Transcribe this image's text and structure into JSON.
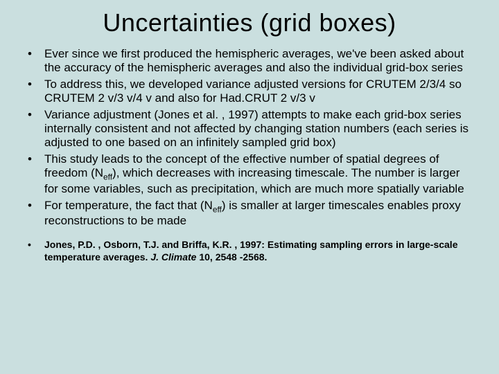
{
  "background_color": "#cadfdf",
  "text_color": "#000000",
  "font_family": "Comic Sans MS",
  "title": "Uncertainties (grid boxes)",
  "title_fontsize": 36,
  "bullet_fontsize": 17,
  "bullets": [
    "Ever since we first produced the hemispheric averages, we've been asked about the accuracy of the hemispheric averages and also the individual grid-box series",
    "To address this, we developed variance adjusted versions for CRUTEM 2/3/4 so CRUTEM 2 v/3 v/4 v and also for Had.CRUT 2 v/3 v",
    "Variance adjustment (Jones et al. , 1997) attempts to make each grid-box series internally consistent and not affected by changing station numbers (each series is adjusted to one based on an infinitely sampled grid  box)",
    "This study leads to the concept of the effective number of spatial degrees of freedom (N<sub>eff</sub>), which decreases with increasing timescale. The number is larger for some variables, such as precipitation, which are much more spatially variable",
    "For temperature, the fact that (N<sub>eff</sub>) is smaller at larger timescales enables proxy reconstructions to be made"
  ],
  "reference_fontsize": 14,
  "references": [
    "Jones, P.D. , Osborn, T.J. and Briffa, K.R. , 1997:  Estimating sampling errors in large-scale temperature averages.  <span class=\"journal\">J. Climate</span> 10, 2548 -2568."
  ]
}
